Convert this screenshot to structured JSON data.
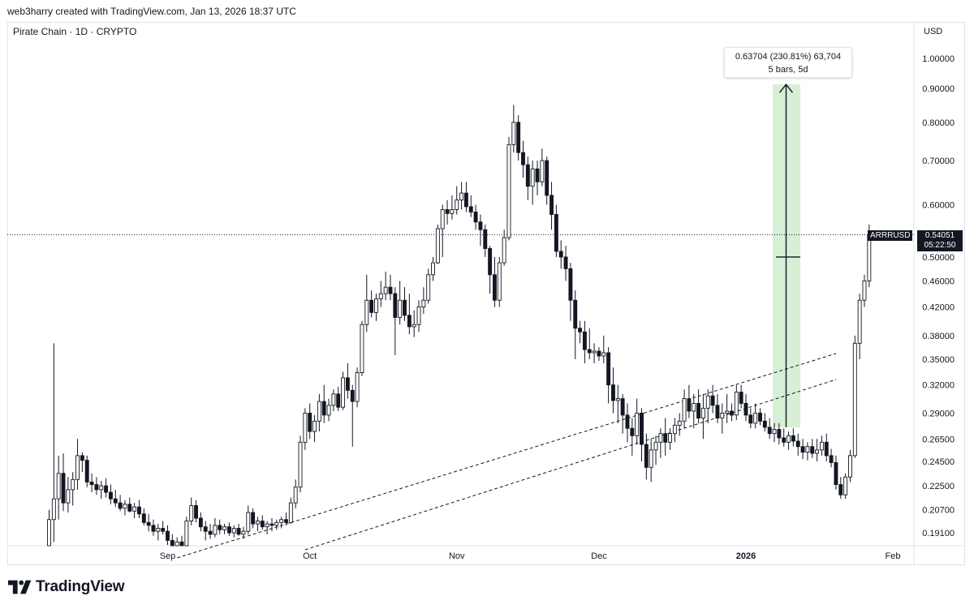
{
  "header": {
    "attribution": "web3harry created with TradingView.com, Jan 13, 2026 18:37 UTC"
  },
  "chart_header": {
    "symbol_title": "Pirate Chain · 1D · CRYPTO",
    "currency": "USD"
  },
  "measure_tooltip": {
    "line1": "0.63704 (230.81%) 63,704",
    "line2": "5 bars, 5d"
  },
  "last_price": {
    "ticker": "ARRRUSD",
    "price": "0.54051",
    "countdown": "05:22:50"
  },
  "logo": {
    "text": "TradingView"
  },
  "colors": {
    "candle_body_up": "#ffffff",
    "candle_body_down": "#131722",
    "candle_border": "#131722",
    "measure_fill": "#d7efd5",
    "grid_border": "#e0e3eb"
  },
  "chart_data": {
    "type": "candlestick",
    "title": "Pirate Chain · 1D · CRYPTO",
    "ylabel": "USD",
    "y_scale": "log",
    "ylim": [
      0.18,
      1.05
    ],
    "price_ticks": [
      "1.00000",
      "0.90000",
      "0.80000",
      "0.70000",
      "0.60000",
      "0.50000",
      "0.46000",
      "0.42000",
      "0.38000",
      "0.35000",
      "0.32000",
      "0.29000",
      "0.26500",
      "0.24500",
      "0.22500",
      "0.20700",
      "0.19100"
    ],
    "date_ticks": [
      {
        "label": "Sep",
        "date": "2025-09-01",
        "bold": false
      },
      {
        "label": "Oct",
        "date": "2025-10-01",
        "bold": false
      },
      {
        "label": "Nov",
        "date": "2025-11-01",
        "bold": false
      },
      {
        "label": "Dec",
        "date": "2025-12-01",
        "bold": false
      },
      {
        "label": "2026",
        "date": "2026-01-01",
        "bold": true
      },
      {
        "label": "Feb",
        "date": "2026-02-01",
        "bold": false
      }
    ],
    "first_bar_date": "2025-08-07",
    "candles": [
      [
        0.178,
        0.207,
        0.16,
        0.2
      ],
      [
        0.2,
        0.37,
        0.185,
        0.215
      ],
      [
        0.215,
        0.25,
        0.2,
        0.235
      ],
      [
        0.235,
        0.252,
        0.206,
        0.212
      ],
      [
        0.212,
        0.232,
        0.205,
        0.222
      ],
      [
        0.222,
        0.236,
        0.21,
        0.23
      ],
      [
        0.23,
        0.265,
        0.222,
        0.25
      ],
      [
        0.25,
        0.253,
        0.236,
        0.246
      ],
      [
        0.246,
        0.25,
        0.224,
        0.228
      ],
      [
        0.228,
        0.235,
        0.22,
        0.226
      ],
      [
        0.226,
        0.232,
        0.218,
        0.222
      ],
      [
        0.222,
        0.229,
        0.215,
        0.225
      ],
      [
        0.225,
        0.231,
        0.216,
        0.22
      ],
      [
        0.22,
        0.226,
        0.211,
        0.215
      ],
      [
        0.215,
        0.222,
        0.209,
        0.212
      ],
      [
        0.212,
        0.218,
        0.206,
        0.208
      ],
      [
        0.208,
        0.214,
        0.203,
        0.211
      ],
      [
        0.211,
        0.216,
        0.205,
        0.206
      ],
      [
        0.206,
        0.212,
        0.201,
        0.209
      ],
      [
        0.209,
        0.214,
        0.201,
        0.204
      ],
      [
        0.204,
        0.208,
        0.196,
        0.198
      ],
      [
        0.198,
        0.204,
        0.192,
        0.196
      ],
      [
        0.196,
        0.2,
        0.189,
        0.192
      ],
      [
        0.192,
        0.197,
        0.186,
        0.194
      ],
      [
        0.194,
        0.199,
        0.19,
        0.192
      ],
      [
        0.192,
        0.196,
        0.183,
        0.186
      ],
      [
        0.186,
        0.19,
        0.179,
        0.182
      ],
      [
        0.182,
        0.188,
        0.177,
        0.185
      ],
      [
        0.185,
        0.189,
        0.178,
        0.18
      ],
      [
        0.18,
        0.202,
        0.178,
        0.199
      ],
      [
        0.199,
        0.216,
        0.196,
        0.21
      ],
      [
        0.21,
        0.214,
        0.198,
        0.201
      ],
      [
        0.201,
        0.205,
        0.192,
        0.195
      ],
      [
        0.195,
        0.199,
        0.186,
        0.192
      ],
      [
        0.192,
        0.197,
        0.187,
        0.19
      ],
      [
        0.19,
        0.201,
        0.188,
        0.196
      ],
      [
        0.196,
        0.2,
        0.19,
        0.193
      ],
      [
        0.193,
        0.197,
        0.19,
        0.195
      ],
      [
        0.195,
        0.198,
        0.189,
        0.191
      ],
      [
        0.191,
        0.196,
        0.188,
        0.194
      ],
      [
        0.194,
        0.197,
        0.189,
        0.19
      ],
      [
        0.19,
        0.195,
        0.187,
        0.192
      ],
      [
        0.192,
        0.21,
        0.19,
        0.205
      ],
      [
        0.205,
        0.208,
        0.194,
        0.197
      ],
      [
        0.197,
        0.202,
        0.192,
        0.199
      ],
      [
        0.199,
        0.203,
        0.193,
        0.195
      ],
      [
        0.195,
        0.199,
        0.19,
        0.197
      ],
      [
        0.197,
        0.201,
        0.192,
        0.196
      ],
      [
        0.196,
        0.2,
        0.193,
        0.198
      ],
      [
        0.198,
        0.202,
        0.194,
        0.2
      ],
      [
        0.2,
        0.205,
        0.196,
        0.198
      ],
      [
        0.198,
        0.216,
        0.197,
        0.212
      ],
      [
        0.212,
        0.23,
        0.208,
        0.224
      ],
      [
        0.224,
        0.268,
        0.22,
        0.262
      ],
      [
        0.262,
        0.295,
        0.255,
        0.29
      ],
      [
        0.29,
        0.3,
        0.265,
        0.272
      ],
      [
        0.272,
        0.288,
        0.262,
        0.282
      ],
      [
        0.282,
        0.31,
        0.272,
        0.302
      ],
      [
        0.302,
        0.32,
        0.28,
        0.288
      ],
      [
        0.288,
        0.305,
        0.282,
        0.298
      ],
      [
        0.298,
        0.315,
        0.292,
        0.31
      ],
      [
        0.31,
        0.318,
        0.292,
        0.296
      ],
      [
        0.296,
        0.335,
        0.293,
        0.328
      ],
      [
        0.328,
        0.345,
        0.305,
        0.314
      ],
      [
        0.314,
        0.32,
        0.258,
        0.302
      ],
      [
        0.302,
        0.34,
        0.296,
        0.334
      ],
      [
        0.334,
        0.4,
        0.33,
        0.395
      ],
      [
        0.395,
        0.47,
        0.385,
        0.43
      ],
      [
        0.43,
        0.445,
        0.405,
        0.412
      ],
      [
        0.412,
        0.44,
        0.4,
        0.432
      ],
      [
        0.432,
        0.46,
        0.42,
        0.44
      ],
      [
        0.44,
        0.475,
        0.43,
        0.45
      ],
      [
        0.45,
        0.47,
        0.43,
        0.44
      ],
      [
        0.44,
        0.45,
        0.355,
        0.405
      ],
      [
        0.405,
        0.46,
        0.395,
        0.43
      ],
      [
        0.43,
        0.45,
        0.4,
        0.408
      ],
      [
        0.408,
        0.44,
        0.382,
        0.392
      ],
      [
        0.392,
        0.415,
        0.378,
        0.395
      ],
      [
        0.395,
        0.43,
        0.385,
        0.42
      ],
      [
        0.42,
        0.45,
        0.41,
        0.43
      ],
      [
        0.43,
        0.48,
        0.425,
        0.47
      ],
      [
        0.47,
        0.5,
        0.46,
        0.49
      ],
      [
        0.49,
        0.56,
        0.488,
        0.552
      ],
      [
        0.552,
        0.6,
        0.5,
        0.59
      ],
      [
        0.59,
        0.61,
        0.56,
        0.582
      ],
      [
        0.582,
        0.62,
        0.57,
        0.59
      ],
      [
        0.59,
        0.64,
        0.58,
        0.61
      ],
      [
        0.61,
        0.65,
        0.59,
        0.625
      ],
      [
        0.625,
        0.65,
        0.585,
        0.596
      ],
      [
        0.596,
        0.62,
        0.575,
        0.585
      ],
      [
        0.585,
        0.6,
        0.55,
        0.565
      ],
      [
        0.565,
        0.58,
        0.52,
        0.55
      ],
      [
        0.55,
        0.56,
        0.5,
        0.515
      ],
      [
        0.515,
        0.52,
        0.44,
        0.47
      ],
      [
        0.47,
        0.5,
        0.42,
        0.43
      ],
      [
        0.43,
        0.5,
        0.42,
        0.49
      ],
      [
        0.49,
        0.55,
        0.485,
        0.535
      ],
      [
        0.535,
        0.76,
        0.53,
        0.74
      ],
      [
        0.74,
        0.85,
        0.72,
        0.8
      ],
      [
        0.8,
        0.82,
        0.7,
        0.72
      ],
      [
        0.72,
        0.75,
        0.66,
        0.69
      ],
      [
        0.69,
        0.71,
        0.61,
        0.64
      ],
      [
        0.64,
        0.7,
        0.6,
        0.68
      ],
      [
        0.68,
        0.7,
        0.62,
        0.65
      ],
      [
        0.65,
        0.73,
        0.64,
        0.7
      ],
      [
        0.7,
        0.71,
        0.6,
        0.62
      ],
      [
        0.62,
        0.65,
        0.55,
        0.58
      ],
      [
        0.58,
        0.6,
        0.5,
        0.51
      ],
      [
        0.51,
        0.53,
        0.48,
        0.5
      ],
      [
        0.5,
        0.52,
        0.46,
        0.48
      ],
      [
        0.48,
        0.49,
        0.4,
        0.43
      ],
      [
        0.43,
        0.445,
        0.35,
        0.39
      ],
      [
        0.39,
        0.4,
        0.37,
        0.385
      ],
      [
        0.385,
        0.4,
        0.345,
        0.362
      ],
      [
        0.362,
        0.39,
        0.35,
        0.358
      ],
      [
        0.358,
        0.37,
        0.345,
        0.36
      ],
      [
        0.36,
        0.365,
        0.348,
        0.354
      ],
      [
        0.354,
        0.38,
        0.345,
        0.358
      ],
      [
        0.358,
        0.365,
        0.3,
        0.32
      ],
      [
        0.32,
        0.34,
        0.29,
        0.303
      ],
      [
        0.303,
        0.32,
        0.28,
        0.305
      ],
      [
        0.305,
        0.31,
        0.27,
        0.288
      ],
      [
        0.288,
        0.3,
        0.262,
        0.275
      ],
      [
        0.275,
        0.285,
        0.25,
        0.268
      ],
      [
        0.268,
        0.305,
        0.26,
        0.29
      ],
      [
        0.29,
        0.295,
        0.245,
        0.26
      ],
      [
        0.26,
        0.27,
        0.23,
        0.24
      ],
      [
        0.24,
        0.265,
        0.228,
        0.255
      ],
      [
        0.255,
        0.268,
        0.242,
        0.262
      ],
      [
        0.262,
        0.275,
        0.248,
        0.27
      ],
      [
        0.27,
        0.285,
        0.25,
        0.262
      ],
      [
        0.262,
        0.275,
        0.255,
        0.27
      ],
      [
        0.27,
        0.285,
        0.262,
        0.278
      ],
      [
        0.278,
        0.29,
        0.268,
        0.282
      ],
      [
        0.282,
        0.315,
        0.275,
        0.305
      ],
      [
        0.305,
        0.32,
        0.285,
        0.292
      ],
      [
        0.292,
        0.31,
        0.275,
        0.3
      ],
      [
        0.3,
        0.315,
        0.28,
        0.285
      ],
      [
        0.285,
        0.31,
        0.265,
        0.295
      ],
      [
        0.295,
        0.315,
        0.28,
        0.308
      ],
      [
        0.308,
        0.32,
        0.29,
        0.298
      ],
      [
        0.298,
        0.31,
        0.28,
        0.285
      ],
      [
        0.285,
        0.3,
        0.27,
        0.29
      ],
      [
        0.29,
        0.31,
        0.28,
        0.292
      ],
      [
        0.292,
        0.3,
        0.282,
        0.288
      ],
      [
        0.288,
        0.32,
        0.283,
        0.312
      ],
      [
        0.312,
        0.32,
        0.295,
        0.3
      ],
      [
        0.3,
        0.31,
        0.282,
        0.288
      ],
      [
        0.288,
        0.295,
        0.275,
        0.28
      ],
      [
        0.28,
        0.3,
        0.275,
        0.29
      ],
      [
        0.29,
        0.295,
        0.278,
        0.282
      ],
      [
        0.282,
        0.29,
        0.272,
        0.276
      ],
      [
        0.276,
        0.285,
        0.265,
        0.27
      ],
      [
        0.27,
        0.28,
        0.262,
        0.274
      ],
      [
        0.274,
        0.28,
        0.26,
        0.266
      ],
      [
        0.266,
        0.275,
        0.258,
        0.262
      ],
      [
        0.262,
        0.272,
        0.255,
        0.268
      ],
      [
        0.268,
        0.275,
        0.258,
        0.263
      ],
      [
        0.263,
        0.27,
        0.25,
        0.258
      ],
      [
        0.258,
        0.265,
        0.247,
        0.253
      ],
      [
        0.253,
        0.262,
        0.246,
        0.258
      ],
      [
        0.258,
        0.265,
        0.248,
        0.252
      ],
      [
        0.252,
        0.265,
        0.245,
        0.255
      ],
      [
        0.255,
        0.268,
        0.25,
        0.262
      ],
      [
        0.262,
        0.27,
        0.245,
        0.25
      ],
      [
        0.25,
        0.256,
        0.24,
        0.244
      ],
      [
        0.244,
        0.25,
        0.222,
        0.226
      ],
      [
        0.226,
        0.232,
        0.215,
        0.218
      ],
      [
        0.218,
        0.235,
        0.215,
        0.232
      ],
      [
        0.232,
        0.255,
        0.228,
        0.25
      ],
      [
        0.25,
        0.38,
        0.248,
        0.37
      ],
      [
        0.37,
        0.44,
        0.35,
        0.43
      ],
      [
        0.43,
        0.47,
        0.42,
        0.46
      ],
      [
        0.46,
        0.56,
        0.45,
        0.54
      ]
    ],
    "measure": {
      "from_price": 0.276,
      "to_price": 0.913,
      "change": "0.63704 (230.81%) 63,704",
      "bars": "5 bars, 5d",
      "marked_price": 0.5
    },
    "trend_lines": [
      {
        "style": "dashed",
        "from": {
          "date": "2025-09-03",
          "price": 0.175
        },
        "to": {
          "date": "2026-01-20",
          "price": 0.357
        }
      },
      {
        "style": "dashed",
        "from": {
          "date": "2025-09-30",
          "price": 0.18
        },
        "to": {
          "date": "2026-01-20",
          "price": 0.326
        }
      }
    ],
    "last_price_line": 0.54051,
    "grid": false
  }
}
